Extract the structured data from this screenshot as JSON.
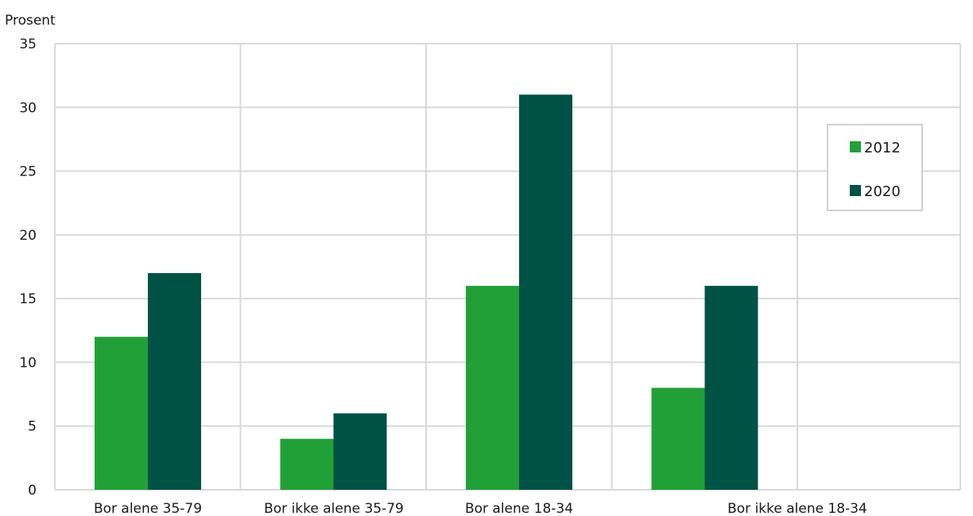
{
  "chart_data": {
    "type": "bar",
    "ylabel": "Prosent",
    "categories": [
      "Bor alene 35-79",
      "Bor ikke alene 35-79",
      "Bor alene 18-34",
      "Bor ikke alene 18-34"
    ],
    "series": [
      {
        "name": "2012",
        "values": [
          12,
          4,
          16,
          8
        ],
        "color": "#22a038"
      },
      {
        "name": "2020",
        "values": [
          17,
          6,
          31,
          16
        ],
        "color": "#005245"
      }
    ],
    "ylim": [
      0,
      35
    ],
    "yticks": [
      0,
      5,
      10,
      15,
      20,
      25,
      30,
      35
    ],
    "grid": true,
    "legend": "right"
  }
}
